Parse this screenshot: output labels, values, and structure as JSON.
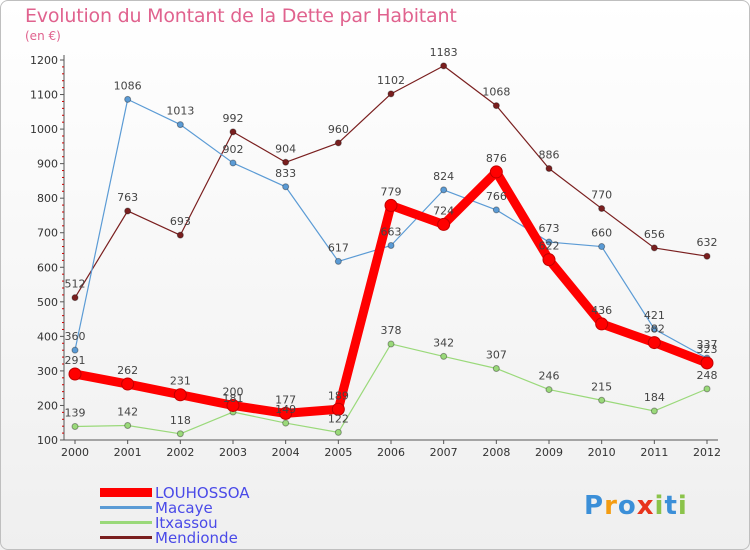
{
  "title": "Evolution du Montant de la Dette par Habitant",
  "subtitle": "(en €)",
  "logo": {
    "text": "Proxiti",
    "letters": [
      "P",
      "r",
      "o",
      "x",
      "i",
      "t",
      "i"
    ],
    "colors": [
      "#3b8fd8",
      "#f39c12",
      "#3b8fd8",
      "#e8341c",
      "#8bc34a",
      "#3b8fd8",
      "#8bc34a"
    ]
  },
  "chart_data": {
    "type": "line",
    "x": [
      "2000",
      "2001",
      "2002",
      "2003",
      "2004",
      "2005",
      "2006",
      "2007",
      "2008",
      "2009",
      "2010",
      "2011",
      "2012"
    ],
    "ylim": [
      100,
      1200
    ],
    "yticks": [
      "100",
      "200",
      "300",
      "400",
      "500",
      "600",
      "700",
      "800",
      "900",
      "1000",
      "1100",
      "1200"
    ],
    "grid": false,
    "legend_position": "bottom-left",
    "series": [
      {
        "name": "Mendionde",
        "color": "#7a1f1f",
        "values": [
          512,
          763,
          693,
          992,
          904,
          960,
          1102,
          1183,
          1068,
          886,
          770,
          656,
          632
        ],
        "labels": [
          "512",
          "763",
          "693",
          "992",
          "904",
          "960",
          "1102",
          "1183",
          "1068",
          "886",
          "770",
          "656",
          "632"
        ]
      },
      {
        "name": "Macaye",
        "color": "#5b9bd5",
        "values": [
          360,
          1086,
          1013,
          902,
          833,
          617,
          663,
          824,
          766,
          673,
          660,
          421,
          337
        ],
        "labels": [
          "360",
          "1086",
          "1013",
          "902",
          "833",
          "617",
          "663",
          "824",
          "766",
          "673",
          "660",
          "421",
          "337"
        ]
      },
      {
        "name": "Itxassou",
        "color": "#9ad97a",
        "values": [
          139,
          142,
          118,
          181,
          149,
          122,
          378,
          342,
          307,
          246,
          215,
          184,
          248
        ],
        "labels": [
          "139",
          "142",
          "118",
          "181",
          "149",
          "122",
          "378",
          "342",
          "307",
          "246",
          "215",
          "184",
          "248"
        ]
      },
      {
        "name": "LOUHOSSOA",
        "color": "#ff0000",
        "values": [
          291,
          262,
          231,
          200,
          177,
          189,
          779,
          724,
          876,
          622,
          436,
          382,
          323
        ],
        "labels": [
          "291",
          "262",
          "231",
          "200",
          "177",
          "189",
          "779",
          "724",
          "876",
          "622",
          "436",
          "382",
          "323"
        ]
      }
    ],
    "legend": [
      "LOUHOSSOA",
      "Macaye",
      "Itxassou",
      "Mendionde"
    ]
  }
}
